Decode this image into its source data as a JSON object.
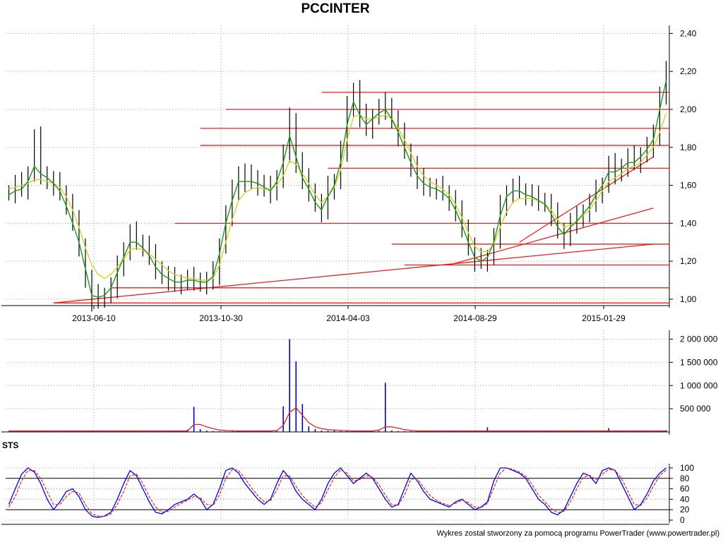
{
  "title": "PCCINTER",
  "footer": "Wykres został stworzony za pomocą programu PowerTrader (www.powertrader.pl)",
  "colors": {
    "grid": "#9a9a9a",
    "price": "#000000",
    "fast_ma": "#1a9b1a",
    "slow_ma": "#d6cf2e",
    "support_lines": "#e52222",
    "volume": "#0000c8",
    "volume_avg": "#e52222",
    "sts_k": "#0000e6",
    "sts_d": "#e52222",
    "sts_levels": "#000000"
  },
  "chart_data": [
    {
      "type": "line",
      "panel": "price",
      "title": "PCCINTER",
      "x_ticks": [
        "2013-06-10",
        "2013-10-30",
        "2014-04-03",
        "2014-08-29",
        "2015-01-29"
      ],
      "y_ticks": [
        "1,00",
        "1,20",
        "1,40",
        "1,60",
        "1,80",
        "2,00",
        "2,20",
        "2,40"
      ],
      "ylim": [
        0.97,
        2.42
      ],
      "grid": true,
      "series": [
        {
          "key": "close",
          "values": [
            1.56,
            1.6,
            1.58,
            1.66,
            1.84,
            1.66,
            1.62,
            1.6,
            1.56,
            1.5,
            1.4,
            1.28,
            1.1,
            0.99,
            1.01,
            1.02,
            1.06,
            1.16,
            1.26,
            1.34,
            1.3,
            1.28,
            1.22,
            1.16,
            1.12,
            1.1,
            1.08,
            1.09,
            1.1,
            1.1,
            1.08,
            1.09,
            1.13,
            1.28,
            1.44,
            1.56,
            1.66,
            1.62,
            1.64,
            1.6,
            1.58,
            1.56,
            1.64,
            1.76,
            1.94,
            1.72,
            1.62,
            1.57,
            1.5,
            1.46,
            1.58,
            1.62,
            1.78,
            2.0,
            2.1,
            1.96,
            1.9,
            1.96,
            2.0,
            2.02,
            1.94,
            1.86,
            1.78,
            1.7,
            1.62,
            1.6,
            1.58,
            1.58,
            1.56,
            1.52,
            1.45,
            1.38,
            1.27,
            1.2,
            1.2,
            1.22,
            1.32,
            1.48,
            1.56,
            1.58,
            1.57,
            1.55,
            1.53,
            1.52,
            1.5,
            1.44,
            1.36,
            1.32,
            1.4,
            1.42,
            1.46,
            1.5,
            1.56,
            1.6,
            1.7,
            1.66,
            1.7,
            1.74,
            1.72,
            1.76,
            1.8,
            1.85,
            2.08,
            2.2
          ]
        },
        {
          "key": "fast_ma",
          "name": "",
          "values": [
            1.55,
            1.57,
            1.58,
            1.62,
            1.7,
            1.66,
            1.64,
            1.61,
            1.57,
            1.49,
            1.4,
            1.3,
            1.16,
            1.02,
            1.01,
            1.02,
            1.06,
            1.14,
            1.22,
            1.3,
            1.3,
            1.27,
            1.23,
            1.17,
            1.13,
            1.11,
            1.09,
            1.09,
            1.1,
            1.1,
            1.09,
            1.09,
            1.12,
            1.24,
            1.4,
            1.52,
            1.62,
            1.62,
            1.62,
            1.61,
            1.59,
            1.57,
            1.62,
            1.72,
            1.86,
            1.75,
            1.64,
            1.58,
            1.51,
            1.47,
            1.54,
            1.6,
            1.72,
            1.92,
            2.04,
            1.97,
            1.92,
            1.95,
            1.98,
            2.0,
            1.95,
            1.88,
            1.8,
            1.72,
            1.65,
            1.61,
            1.59,
            1.58,
            1.56,
            1.53,
            1.47,
            1.39,
            1.3,
            1.22,
            1.2,
            1.22,
            1.3,
            1.44,
            1.54,
            1.57,
            1.57,
            1.55,
            1.54,
            1.52,
            1.5,
            1.45,
            1.38,
            1.34,
            1.38,
            1.41,
            1.45,
            1.49,
            1.55,
            1.6,
            1.67,
            1.67,
            1.69,
            1.72,
            1.72,
            1.75,
            1.79,
            1.84,
            2.0,
            2.15
          ]
        },
        {
          "key": "slow_ma",
          "name": "",
          "values": [
            1.58,
            1.59,
            1.6,
            1.61,
            1.63,
            1.63,
            1.62,
            1.61,
            1.59,
            1.54,
            1.47,
            1.38,
            1.27,
            1.18,
            1.13,
            1.11,
            1.13,
            1.17,
            1.21,
            1.26,
            1.27,
            1.26,
            1.24,
            1.21,
            1.18,
            1.15,
            1.13,
            1.12,
            1.11,
            1.11,
            1.1,
            1.1,
            1.11,
            1.18,
            1.3,
            1.42,
            1.52,
            1.56,
            1.58,
            1.59,
            1.58,
            1.58,
            1.6,
            1.65,
            1.73,
            1.71,
            1.66,
            1.61,
            1.55,
            1.51,
            1.54,
            1.59,
            1.68,
            1.84,
            1.96,
            1.97,
            1.95,
            1.95,
            1.96,
            1.97,
            1.95,
            1.9,
            1.84,
            1.77,
            1.7,
            1.65,
            1.62,
            1.6,
            1.58,
            1.55,
            1.5,
            1.43,
            1.35,
            1.28,
            1.25,
            1.25,
            1.29,
            1.38,
            1.46,
            1.51,
            1.53,
            1.53,
            1.53,
            1.52,
            1.5,
            1.47,
            1.42,
            1.38,
            1.39,
            1.41,
            1.44,
            1.47,
            1.52,
            1.57,
            1.62,
            1.64,
            1.66,
            1.69,
            1.7,
            1.72,
            1.76,
            1.8,
            1.88,
            1.98
          ]
        }
      ],
      "horizontal_levels": [
        {
          "value": 2.09,
          "from_index": 49
        },
        {
          "value": 2.0,
          "from_index": 34
        },
        {
          "value": 1.9,
          "from_index": 30
        },
        {
          "value": 1.81,
          "from_index": 30
        },
        {
          "value": 1.69,
          "from_index": 50
        },
        {
          "value": 1.4,
          "from_index": 26
        },
        {
          "value": 1.29,
          "from_index": 60
        },
        {
          "value": 1.18,
          "from_index": 62
        },
        {
          "value": 1.06,
          "from_index": 16
        },
        {
          "value": 0.98,
          "from_index": 7
        }
      ],
      "trend_lines": [
        {
          "from": [
            7,
            0.98
          ],
          "to": [
            101,
            1.29
          ]
        },
        {
          "from": [
            69,
            1.18
          ],
          "to": [
            101,
            1.48
          ]
        },
        {
          "from": [
            80,
            1.3
          ],
          "to": [
            101,
            1.75
          ]
        }
      ]
    },
    {
      "type": "bar",
      "panel": "volume",
      "y_ticks": [
        "500 000",
        "1 000 000",
        "1 500 000",
        "2 000 000"
      ],
      "ylim": [
        0,
        2100000
      ],
      "grid": true,
      "values": [
        20000,
        15000,
        18000,
        22000,
        30000,
        18000,
        15000,
        12000,
        14000,
        25000,
        30000,
        18000,
        12000,
        15000,
        20000,
        14000,
        12000,
        10000,
        15000,
        18000,
        12000,
        10000,
        14000,
        12000,
        10000,
        16000,
        20000,
        25000,
        50000,
        540000,
        60000,
        30000,
        20000,
        15000,
        12000,
        18000,
        15000,
        12000,
        10000,
        20000,
        25000,
        18000,
        22000,
        550000,
        2000000,
        1520000,
        600000,
        120000,
        60000,
        30000,
        25000,
        40000,
        20000,
        15000,
        12000,
        20000,
        18000,
        15000,
        25000,
        1060000,
        30000,
        20000,
        18000,
        15000,
        12000,
        14000,
        12000,
        10000,
        18000,
        20000,
        15000,
        12000,
        10000,
        14000,
        12000,
        100000,
        15000,
        12000,
        10000,
        12000,
        14000,
        15000,
        18000,
        20000,
        16000,
        14000,
        12000,
        10000,
        20000,
        15000,
        25000,
        12000,
        10000,
        12000,
        80000,
        20000,
        15000,
        25000,
        18000,
        12000,
        15000,
        14000,
        30000,
        40000
      ],
      "average_values": [
        20000,
        20000,
        20000,
        20000,
        20000,
        20000,
        20000,
        20000,
        20000,
        20000,
        20000,
        20000,
        20000,
        20000,
        20000,
        20000,
        20000,
        20000,
        20000,
        20000,
        20000,
        20000,
        20000,
        20000,
        20000,
        20000,
        20000,
        20000,
        20000,
        160000,
        160000,
        110000,
        70000,
        40000,
        30000,
        25000,
        20000,
        20000,
        20000,
        20000,
        20000,
        20000,
        30000,
        140000,
        420000,
        520000,
        360000,
        200000,
        110000,
        70000,
        50000,
        40000,
        30000,
        25000,
        20000,
        20000,
        20000,
        20000,
        40000,
        110000,
        110000,
        80000,
        50000,
        30000,
        20000,
        20000,
        20000,
        20000,
        20000,
        20000,
        20000,
        20000,
        20000,
        20000,
        20000,
        20000,
        20000,
        20000,
        20000,
        20000,
        20000,
        20000,
        20000,
        20000,
        20000,
        20000,
        20000,
        20000,
        20000,
        20000,
        20000,
        20000,
        20000,
        20000,
        20000,
        20000,
        20000,
        20000,
        20000,
        20000,
        20000,
        20000,
        20000,
        20000
      ]
    },
    {
      "type": "line",
      "panel": "sts",
      "title": "STS",
      "y_ticks": [
        "0",
        "20",
        "40",
        "60",
        "80",
        "100"
      ],
      "ylim": [
        0,
        100
      ],
      "levels": [
        20,
        80
      ],
      "series": [
        {
          "key": "sts_k",
          "values": [
            30,
            60,
            88,
            100,
            92,
            70,
            40,
            20,
            35,
            55,
            60,
            45,
            20,
            8,
            5,
            8,
            15,
            40,
            70,
            95,
            85,
            60,
            35,
            15,
            12,
            20,
            30,
            35,
            40,
            50,
            40,
            20,
            30,
            60,
            95,
            100,
            90,
            70,
            55,
            40,
            30,
            40,
            70,
            95,
            80,
            55,
            40,
            30,
            20,
            40,
            70,
            90,
            100,
            85,
            70,
            80,
            90,
            80,
            60,
            40,
            25,
            30,
            60,
            90,
            75,
            55,
            40,
            35,
            30,
            25,
            35,
            40,
            30,
            20,
            25,
            35,
            75,
            100,
            100,
            95,
            90,
            80,
            60,
            40,
            30,
            15,
            10,
            20,
            45,
            70,
            90,
            85,
            70,
            95,
            100,
            95,
            70,
            45,
            20,
            30,
            50,
            75,
            90,
            100
          ]
        },
        {
          "key": "sts_d",
          "values": [
            25,
            45,
            75,
            95,
            95,
            80,
            55,
            30,
            30,
            45,
            55,
            52,
            30,
            12,
            8,
            7,
            12,
            30,
            55,
            85,
            88,
            70,
            45,
            25,
            15,
            17,
            25,
            32,
            38,
            45,
            43,
            30,
            28,
            48,
            80,
            97,
            95,
            80,
            62,
            47,
            35,
            37,
            58,
            85,
            85,
            65,
            47,
            35,
            25,
            33,
            58,
            82,
            96,
            90,
            75,
            78,
            85,
            82,
            68,
            48,
            30,
            28,
            48,
            78,
            80,
            62,
            47,
            38,
            32,
            28,
            32,
            38,
            34,
            25,
            24,
            32,
            62,
            90,
            100,
            97,
            92,
            84,
            68,
            48,
            35,
            22,
            14,
            17,
            35,
            60,
            82,
            86,
            78,
            88,
            97,
            96,
            80,
            55,
            30,
            28,
            42,
            65,
            85,
            96
          ]
        }
      ]
    }
  ]
}
